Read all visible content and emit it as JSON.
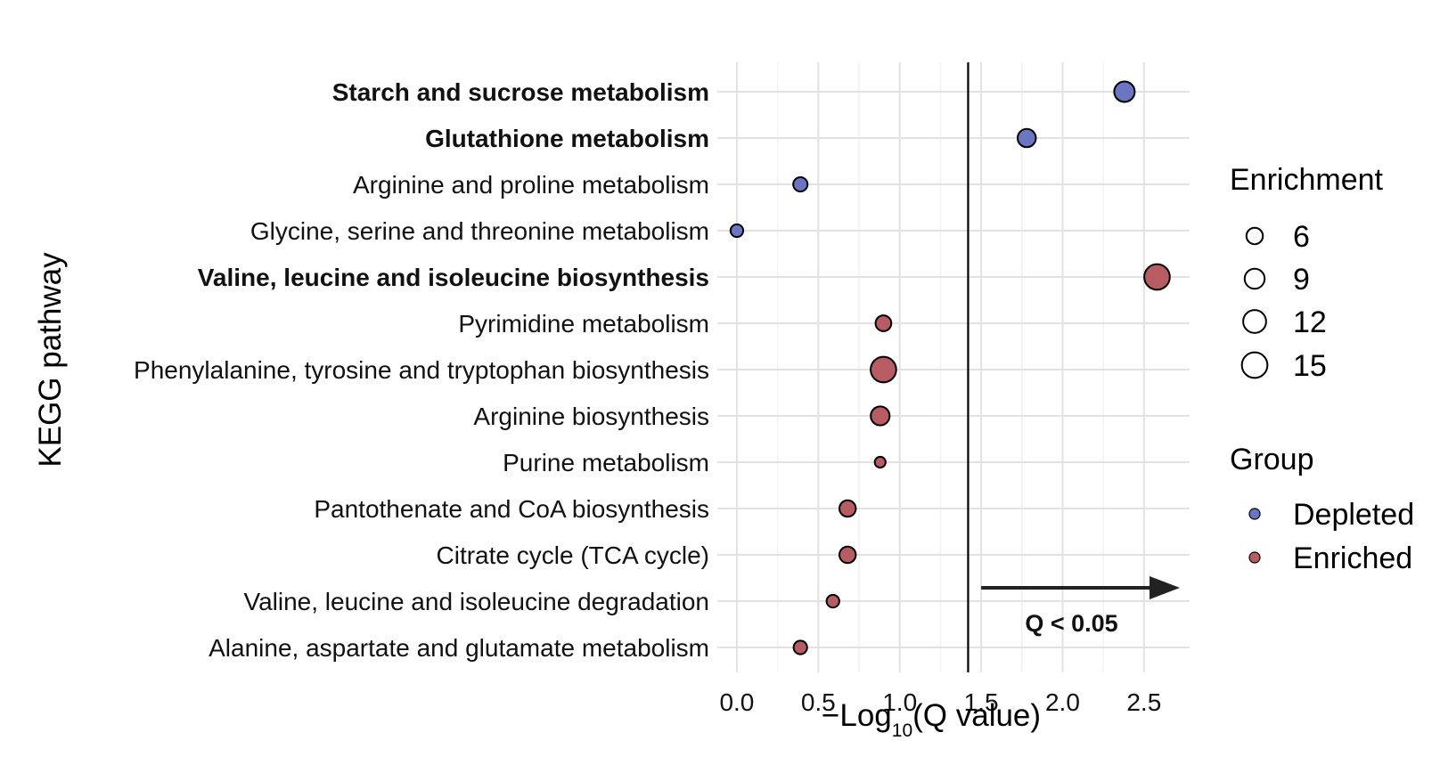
{
  "chart_data": {
    "type": "scatter",
    "title": "",
    "xlabel": {
      "prefix": "−Log",
      "subscript": "10",
      "suffix": "(Q value)"
    },
    "ylabel": "KEGG pathway",
    "xlim": [
      -0.12,
      2.78
    ],
    "xticks": [
      "0.0",
      "0.5",
      "1.0",
      "1.5",
      "2.0",
      "2.5"
    ],
    "xtick_values": [
      0,
      0.5,
      1.0,
      1.5,
      2.0,
      2.5
    ],
    "grid": true,
    "threshold": {
      "x": 1.42,
      "label": "Q < 0.05",
      "arrow_from": 1.5,
      "arrow_to": 2.72
    },
    "categories": [
      "Starch and sucrose metabolism",
      "Glutathione metabolism",
      "Arginine and proline metabolism",
      "Glycine, serine and threonine metabolism",
      "Valine, leucine and isoleucine biosynthesis",
      "Pyrimidine metabolism",
      "Phenylalanine, tyrosine and tryptophan biosynthesis",
      "Arginine biosynthesis",
      "Purine metabolism",
      "Pantothenate and CoA biosynthesis",
      "Citrate cycle (TCA cycle)",
      "Valine, leucine and isoleucine degradation",
      "Alanine, aspartate and glutamate metabolism"
    ],
    "bold_categories": [
      "Starch and sucrose metabolism",
      "Glutathione metabolism",
      "Valine, leucine and isoleucine biosynthesis"
    ],
    "points": [
      {
        "pathway": "Starch and sucrose metabolism",
        "x": 2.38,
        "enrichment": 9.5,
        "group": "Depleted"
      },
      {
        "pathway": "Glutathione metabolism",
        "x": 1.78,
        "enrichment": 7.5,
        "group": "Depleted"
      },
      {
        "pathway": "Arginine and proline metabolism",
        "x": 0.39,
        "enrichment": 4.5,
        "group": "Depleted"
      },
      {
        "pathway": "Glycine, serine and threonine metabolism",
        "x": 0.0,
        "enrichment": 3.5,
        "group": "Depleted"
      },
      {
        "pathway": "Valine, leucine and isoleucine biosynthesis",
        "x": 2.58,
        "enrichment": 15,
        "group": "Enriched"
      },
      {
        "pathway": "Pyrimidine metabolism",
        "x": 0.9,
        "enrichment": 5.5,
        "group": "Enriched"
      },
      {
        "pathway": "Phenylalanine, tyrosine and tryptophan biosynthesis",
        "x": 0.9,
        "enrichment": 15,
        "group": "Enriched"
      },
      {
        "pathway": "Arginine biosynthesis",
        "x": 0.88,
        "enrichment": 8,
        "group": "Enriched"
      },
      {
        "pathway": "Purine metabolism",
        "x": 0.88,
        "enrichment": 2.5,
        "group": "Enriched"
      },
      {
        "pathway": "Pantothenate and CoA biosynthesis",
        "x": 0.68,
        "enrichment": 6,
        "group": "Enriched"
      },
      {
        "pathway": "Citrate cycle (TCA cycle)",
        "x": 0.68,
        "enrichment": 6,
        "group": "Enriched"
      },
      {
        "pathway": "Valine, leucine and isoleucine degradation",
        "x": 0.59,
        "enrichment": 3.5,
        "group": "Enriched"
      },
      {
        "pathway": "Alanine, aspartate and glutamate metabolism",
        "x": 0.39,
        "enrichment": 4,
        "group": "Enriched"
      }
    ],
    "legend": {
      "size_title": "Enrichment",
      "size_entries": [
        {
          "label": "6",
          "value": 6
        },
        {
          "label": "9",
          "value": 9
        },
        {
          "label": "12",
          "value": 12
        },
        {
          "label": "15",
          "value": 15
        }
      ],
      "color_title": "Group",
      "color_entries": [
        {
          "label": "Depleted",
          "color": "#6A76C2"
        },
        {
          "label": "Enriched",
          "color": "#B85C63"
        }
      ],
      "placement": "right"
    }
  }
}
